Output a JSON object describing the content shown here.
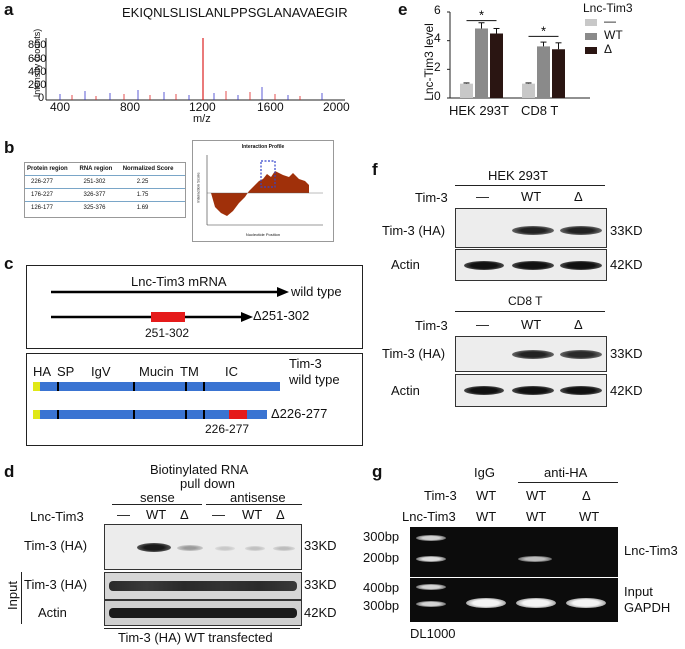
{
  "panel_a": {
    "label": "a",
    "peptide": "EKIQNLSLISLANLPPSGLANAVAEGIR",
    "ylabel": "Intensity (counts)",
    "xlabel": "m/z",
    "yticks": [
      "0",
      "200",
      "400",
      "600",
      "800"
    ],
    "xticks": [
      "400",
      "800",
      "1200",
      "1600",
      "2000"
    ]
  },
  "panel_b": {
    "label": "b",
    "table": {
      "headers": [
        "Protein region",
        "RNA region",
        "Normalized Score"
      ],
      "rows": [
        [
          "226-277",
          "251-302",
          "2.25"
        ],
        [
          "176-227",
          "326-377",
          "1.75"
        ],
        [
          "126-177",
          "325-376",
          "1.69"
        ]
      ]
    },
    "profile_title": "Interaction Profile",
    "profile_xlabel": "Nucleotide Position",
    "profile_ylabel": "Interaction Score"
  },
  "panel_c": {
    "label": "c",
    "mrna_title": "Lnc-Tim3 mRNA",
    "wild_type": "wild type",
    "deletion_region": "251-302",
    "deletion_label": "Δ251-302",
    "domains": [
      "HA",
      "SP",
      "IgV",
      "Mucin",
      "TM",
      "IC"
    ],
    "protein_name": "Tim-3",
    "protein_wild_type": "wild type",
    "protein_deletion_region": "226-277",
    "protein_deletion_label": "Δ226-277"
  },
  "panel_d": {
    "label": "d",
    "title_line1": "Biotinylated RNA",
    "title_line2": "pull down",
    "group_sense": "sense",
    "group_antisense": "antisense",
    "row_header": "Lnc-Tim3",
    "lanes": [
      "—",
      "WT",
      "Δ",
      "—",
      "WT",
      "Δ"
    ],
    "row1": "Tim-3 (HA)",
    "row2": "Tim-3 (HA)",
    "row3": "Actin",
    "input_label": "Input",
    "mw1": "33KD",
    "mw2": "33KD",
    "mw3": "42KD",
    "footer": "Tim-3 (HA) WT transfected"
  },
  "panel_e": {
    "label": "e",
    "legend_title": "Lnc-Tim3",
    "legend": [
      "—",
      "WT",
      "Δ"
    ],
    "colors": [
      "#c8c8c8",
      "#8a8a8a",
      "#2a1512"
    ],
    "ylabel": "Lnc-Tim3 level",
    "yticks": [
      "0",
      "2",
      "4",
      "6"
    ],
    "ylim": [
      0,
      6
    ],
    "categories": [
      "HEK 293T",
      "CD8 T"
    ],
    "sig": [
      "*",
      "*"
    ]
  },
  "chart_data": {
    "type": "bar",
    "categories": [
      "HEK 293T",
      "CD8 T"
    ],
    "series": [
      {
        "name": "—",
        "values": [
          1.0,
          1.0
        ],
        "errors": [
          0.05,
          0.05
        ]
      },
      {
        "name": "WT",
        "values": [
          4.85,
          3.6
        ],
        "errors": [
          0.4,
          0.3
        ]
      },
      {
        "name": "Δ",
        "values": [
          4.5,
          3.4
        ],
        "errors": [
          0.35,
          0.45
        ]
      }
    ],
    "ylabel": "Lnc-Tim3 level",
    "ylim": [
      0,
      6
    ]
  },
  "panel_f": {
    "label": "f",
    "blocks": [
      {
        "cell": "HEK 293T",
        "row_header": "Tim-3",
        "lanes": [
          "—",
          "WT",
          "Δ"
        ],
        "rows": [
          "Tim-3 (HA)",
          "Actin"
        ],
        "mws": [
          "33KD",
          "42KD"
        ]
      },
      {
        "cell": "CD8 T",
        "row_header": "Tim-3",
        "lanes": [
          "—",
          "WT",
          "Δ"
        ],
        "rows": [
          "Tim-3 (HA)",
          "Actin"
        ],
        "mws": [
          "33KD",
          "42KD"
        ]
      }
    ]
  },
  "panel_g": {
    "label": "g",
    "group_igg": "IgG",
    "group_antiha": "anti-HA",
    "row1_header": "Tim-3",
    "row2_header": "Lnc-Tim3",
    "row1": [
      "WT",
      "WT",
      "Δ"
    ],
    "row1_igg": "WT",
    "row2": [
      "WT",
      "WT",
      "WT"
    ],
    "ladder_top": [
      "300bp",
      "200bp"
    ],
    "ladder_bottom": [
      "400bp",
      "300bp"
    ],
    "right_top": "Lnc-Tim3",
    "right_bottom1": "Input",
    "right_bottom2": "GAPDH",
    "marker": "DL1000"
  }
}
